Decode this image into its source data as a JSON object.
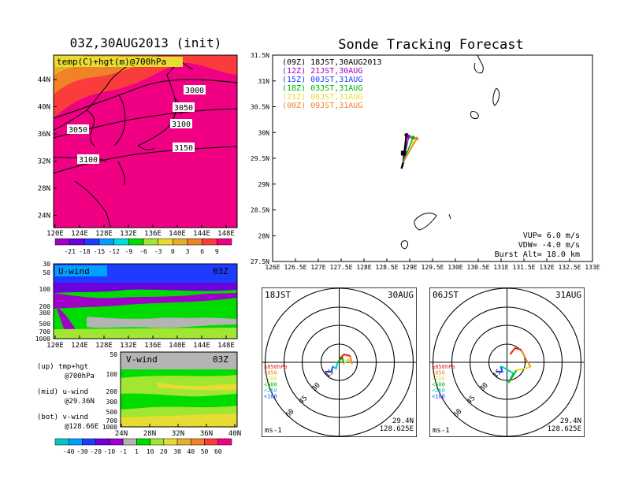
{
  "left": {
    "title": "03Z,30AUG2013 (init)",
    "map_label": "temp(C)+hgt(m)@700hPa",
    "lat_labels": [
      "44N",
      "40N",
      "36N",
      "32N",
      "28N",
      "24N"
    ],
    "lon_labels": [
      "120E",
      "124E",
      "128E",
      "132E",
      "136E",
      "140E",
      "144E",
      "148E"
    ],
    "contour_labels": [
      "3000",
      "3050",
      "3050",
      "3100",
      "3100",
      "3150"
    ],
    "temp_cbar": [
      "-21",
      "-18",
      "-15",
      "-12",
      "-9",
      "-6",
      "-3",
      "0",
      "3",
      "6",
      "9"
    ],
    "uwind": {
      "title": "U-wind",
      "time": "03Z",
      "levels": [
        "30",
        "50",
        "100",
        "200",
        "300",
        "500",
        "700",
        "1000"
      ]
    },
    "vwind": {
      "title": "V-wind",
      "time": "03Z",
      "levels": [
        "50",
        "100",
        "200",
        "300",
        "500",
        "700",
        "1000"
      ],
      "lat_labels": [
        "24N",
        "28N",
        "32N",
        "36N",
        "40N"
      ]
    },
    "notes": [
      "(up) tmp+hgt",
      "@700hPa",
      "(mid) u-wind",
      "@29.36N",
      "(bot) v-wind",
      "@128.66E"
    ],
    "wind_cbar": [
      "-40",
      "-30",
      "-20",
      "-10",
      "-1",
      "1",
      "10",
      "20",
      "30",
      "40",
      "50",
      "60"
    ]
  },
  "right": {
    "title": "Sonde Tracking Forecast",
    "legend": [
      {
        "text": "(09Z) 18JST,30AUG2013",
        "color": "#000000"
      },
      {
        "text": "(12Z) 21JST,30AUG",
        "color": "#a000c8"
      },
      {
        "text": "(15Z) 00JST,31AUG",
        "color": "#1e3cff"
      },
      {
        "text": "(18Z) 03JST,31AUG",
        "color": "#00b400"
      },
      {
        "text": "(21Z) 06JST,31AUG",
        "color": "#e6dc32"
      },
      {
        "text": "(00Z) 09JST,31AUG",
        "color": "#f08228"
      }
    ],
    "lat_labels": [
      "31.5N",
      "31N",
      "30.5N",
      "30N",
      "29.5N",
      "29N",
      "28.5N",
      "28N",
      "27.5N"
    ],
    "lon_labels": [
      "126E",
      "126.5E",
      "127E",
      "127.5E",
      "128E",
      "128.5E",
      "129E",
      "129.5E",
      "130E",
      "130.5E",
      "131E",
      "131.5E",
      "132E",
      "132.5E",
      "133E"
    ],
    "params": [
      "VUP=  6.0 m/s",
      "VDW= -4.0 m/s",
      "Burst Alt= 18.0 km"
    ]
  },
  "polar1": {
    "time": "18JST",
    "date": "30AUG",
    "rings": [
      "15",
      "30",
      "45",
      "60"
    ],
    "unit": "ms-1",
    "lat": "29.4N",
    "lon": "128.625E",
    "levels": [
      {
        "t": "≥850hPa",
        "c": "#e61e1e"
      },
      {
        "t": "<850",
        "c": "#f08228"
      },
      {
        "t": "<700",
        "c": "#e6dc32"
      },
      {
        "t": "<500",
        "c": "#00b400"
      },
      {
        "t": "<250",
        "c": "#00c8c8"
      },
      {
        "t": "<100",
        "c": "#1e3cff"
      }
    ]
  },
  "polar2": {
    "time": "06JST",
    "date": "31AUG",
    "rings": [
      "15",
      "30",
      "45",
      "60"
    ],
    "unit": "ms-1",
    "lat": "29.4N",
    "lon": "128.625E",
    "levels": [
      {
        "t": "≥850hPa",
        "c": "#e61e1e"
      },
      {
        "t": "<850",
        "c": "#f08228"
      },
      {
        "t": "<700",
        "c": "#e6dc32"
      },
      {
        "t": "<500",
        "c": "#00b400"
      },
      {
        "t": "<250",
        "c": "#00c8c8"
      },
      {
        "t": "<100",
        "c": "#1e3cff"
      }
    ]
  },
  "colors": {
    "tempscale": [
      "#a000c8",
      "#6e00dc",
      "#1e3cff",
      "#00a0ff",
      "#00dcdc",
      "#00dc00",
      "#a0e632",
      "#e6dc32",
      "#e6af2d",
      "#f08228",
      "#fa3c3c",
      "#f00082"
    ],
    "windscale": [
      "#00c8c8",
      "#00a0ff",
      "#1e3cff",
      "#6e00dc",
      "#a000c8",
      "#b4b4b4",
      "#00dc00",
      "#a0e632",
      "#e6dc32",
      "#e6af2d",
      "#f08228",
      "#fa3c3c",
      "#f00082"
    ]
  },
  "chart_data": [
    {
      "type": "heatmap",
      "title": "03Z,30AUG2013 (init)",
      "label": "temp(C)+hgt(m)@700hPa",
      "xlim": [
        120,
        150
      ],
      "ylim": [
        22,
        48
      ]
    },
    {
      "type": "line",
      "title": "Sonde Tracking Forecast",
      "xlim": [
        126,
        133
      ],
      "ylim": [
        27.5,
        31.5
      ],
      "series": [
        {
          "name": "(09Z) 18JST,30AUG2013",
          "x": [
            128.86,
            128.93
          ],
          "y": [
            29.42,
            29.95
          ]
        },
        {
          "name": "(12Z) 21JST,30AUG",
          "x": [
            128.86,
            128.98
          ],
          "y": [
            29.42,
            29.92
          ]
        },
        {
          "name": "(15Z) 00JST,31AUG",
          "x": [
            128.86,
            128.92
          ],
          "y": [
            29.42,
            29.6
          ]
        },
        {
          "name": "(18Z) 03JST,31AUG",
          "x": [
            128.86,
            129.07
          ],
          "y": [
            29.42,
            29.9
          ]
        },
        {
          "name": "(21Z) 06JST,31AUG",
          "x": [
            128.86,
            129.08
          ],
          "y": [
            29.42,
            29.8
          ]
        },
        {
          "name": "(00Z) 09JST,31AUG",
          "x": [
            128.86,
            129.15
          ],
          "y": [
            29.42,
            29.88
          ]
        }
      ]
    }
  ]
}
